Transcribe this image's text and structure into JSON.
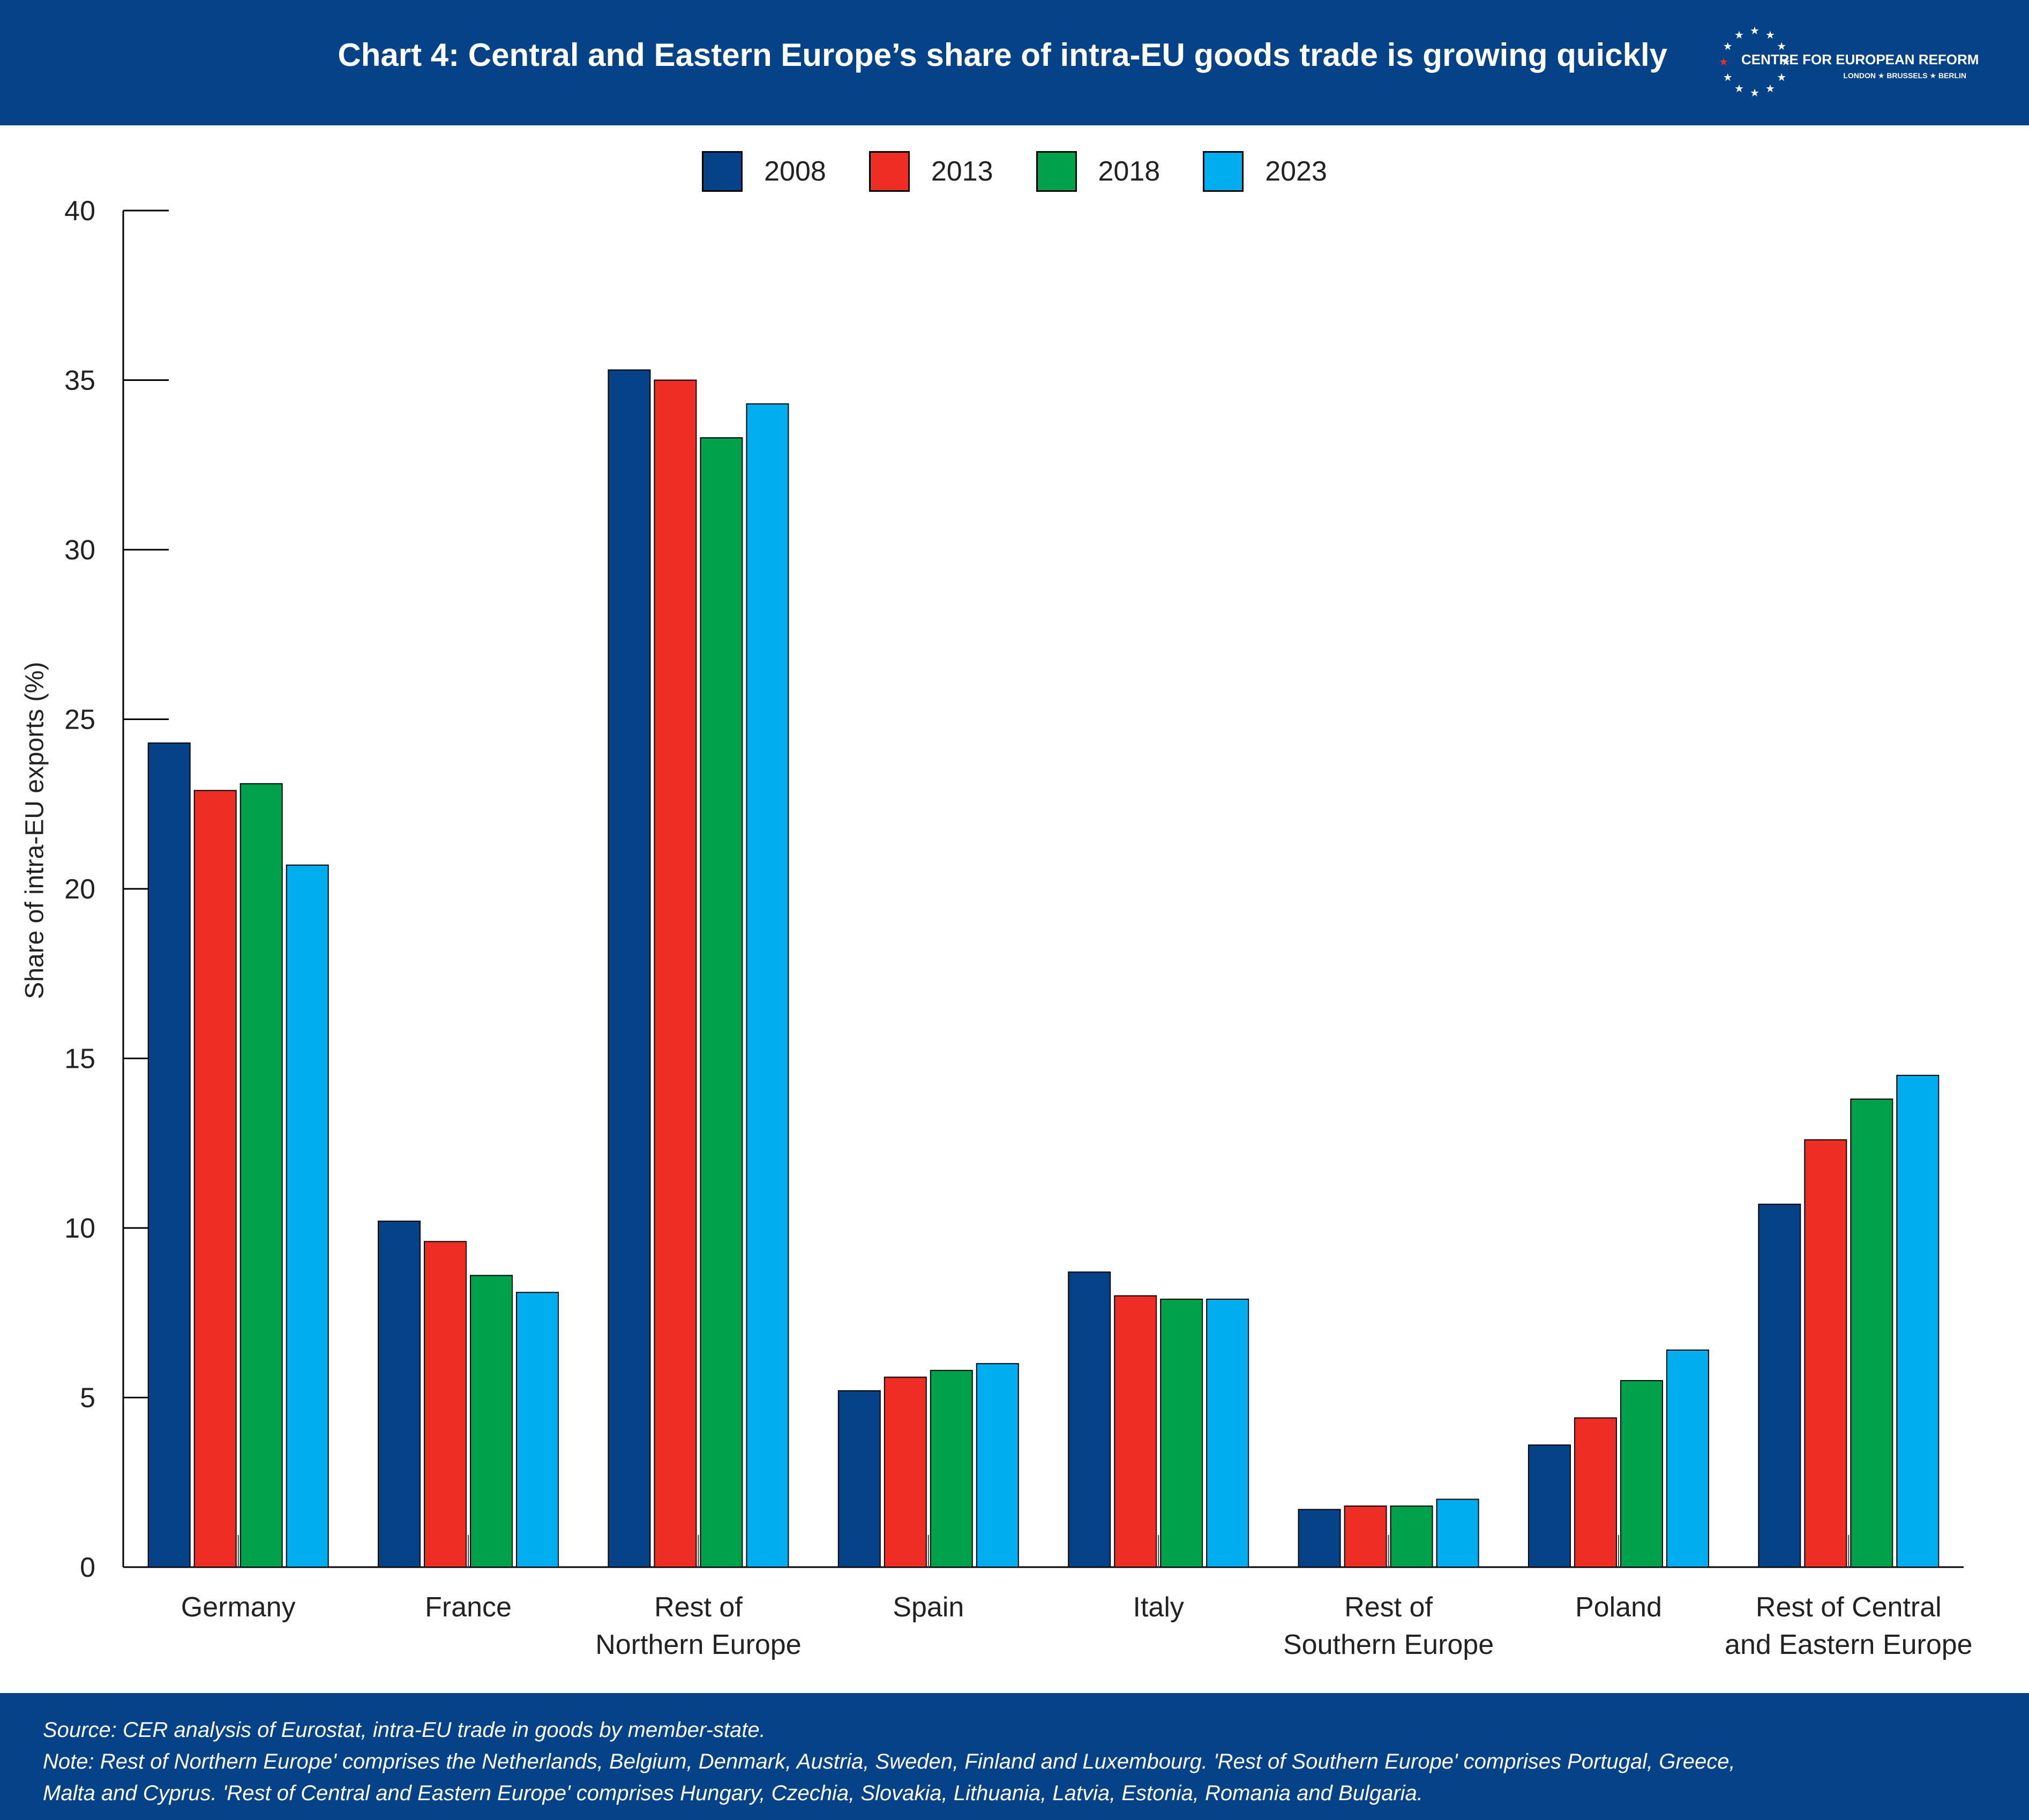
{
  "header": {
    "title": "Chart 4: Central and Eastern Europe’s share of intra-EU goods trade is growing quickly",
    "background": "#054287",
    "logo_name": "CENTRE FOR EUROPEAN REFORM",
    "logo_cities": "LONDON ★ BRUSSELS ★ BERLIN"
  },
  "footer": {
    "source": "Source: CER analysis of Eurostat, intra-EU trade in goods by member-state.",
    "note_line1": "Note: Rest of Northern Europe' comprises the Netherlands, Belgium, Denmark, Austria, Sweden, Finland and Luxembourg. 'Rest of Southern Europe' comprises Portugal, Greece,",
    "note_line2": "Malta and Cyprus. 'Rest of Central and Eastern Europe' comprises Hungary, Czechia, Slovakia, Lithuania, Latvia, Estonia, Romania and Bulgaria."
  },
  "chart_data": {
    "type": "bar",
    "ylabel": "Share of intra-EU exports (%)",
    "xlabel": "",
    "ylim": [
      0,
      40
    ],
    "yticks": [
      0,
      5,
      10,
      15,
      20,
      25,
      30,
      35,
      40
    ],
    "grid": false,
    "legend_position": "top-center",
    "categories": [
      [
        "Germany"
      ],
      [
        "France"
      ],
      [
        "Rest of",
        "Northern Europe"
      ],
      [
        "Spain"
      ],
      [
        "Italy"
      ],
      [
        "Rest of",
        "Southern Europe"
      ],
      [
        "Poland"
      ],
      [
        "Rest of Central",
        "and Eastern Europe"
      ]
    ],
    "series": [
      {
        "name": "2008",
        "color": "#054287",
        "values": [
          24.3,
          10.2,
          35.3,
          5.2,
          8.7,
          1.7,
          3.6,
          10.7
        ]
      },
      {
        "name": "2013",
        "color": "#ee2d24",
        "values": [
          22.9,
          9.6,
          35.0,
          5.6,
          8.0,
          1.8,
          4.4,
          12.6
        ]
      },
      {
        "name": "2018",
        "color": "#00a14b",
        "values": [
          23.1,
          8.6,
          33.3,
          5.8,
          7.9,
          1.8,
          5.5,
          13.8
        ]
      },
      {
        "name": "2023",
        "color": "#00adef",
        "values": [
          20.7,
          8.1,
          34.3,
          6.0,
          7.9,
          2.0,
          6.4,
          14.5
        ]
      }
    ]
  }
}
